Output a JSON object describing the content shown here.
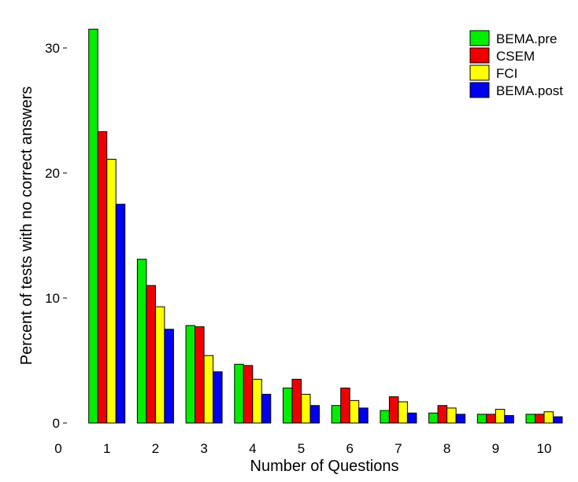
{
  "chart_data": {
    "type": "bar",
    "xlabel": "Number of Questions",
    "ylabel": "Percent of tests with no correct answers",
    "categories": [
      "1",
      "2",
      "3",
      "4",
      "5",
      "6",
      "7",
      "8",
      "9",
      "10"
    ],
    "x_ticks": [
      "0",
      "1",
      "2",
      "3",
      "4",
      "5",
      "6",
      "7",
      "8",
      "9",
      "10"
    ],
    "y_ticks": [
      0,
      10,
      20,
      30
    ],
    "ylim": [
      0,
      32
    ],
    "legend_position": "top-right",
    "series": [
      {
        "name": "BEMA.pre",
        "color": "#00ee00",
        "values": [
          31.5,
          13.1,
          7.8,
          4.7,
          2.8,
          1.4,
          1.0,
          0.8,
          0.7,
          0.7
        ]
      },
      {
        "name": "CSEM",
        "color": "#ee0000",
        "values": [
          23.3,
          11.0,
          7.7,
          4.6,
          3.5,
          2.8,
          2.1,
          1.4,
          0.7,
          0.7
        ]
      },
      {
        "name": "FCI",
        "color": "#ffff00",
        "values": [
          21.1,
          9.3,
          5.4,
          3.5,
          2.3,
          1.8,
          1.7,
          1.2,
          1.1,
          0.9
        ]
      },
      {
        "name": "BEMA.post",
        "color": "#0000ee",
        "values": [
          17.5,
          7.5,
          4.1,
          2.3,
          1.4,
          1.2,
          0.8,
          0.7,
          0.6,
          0.5
        ]
      }
    ]
  }
}
